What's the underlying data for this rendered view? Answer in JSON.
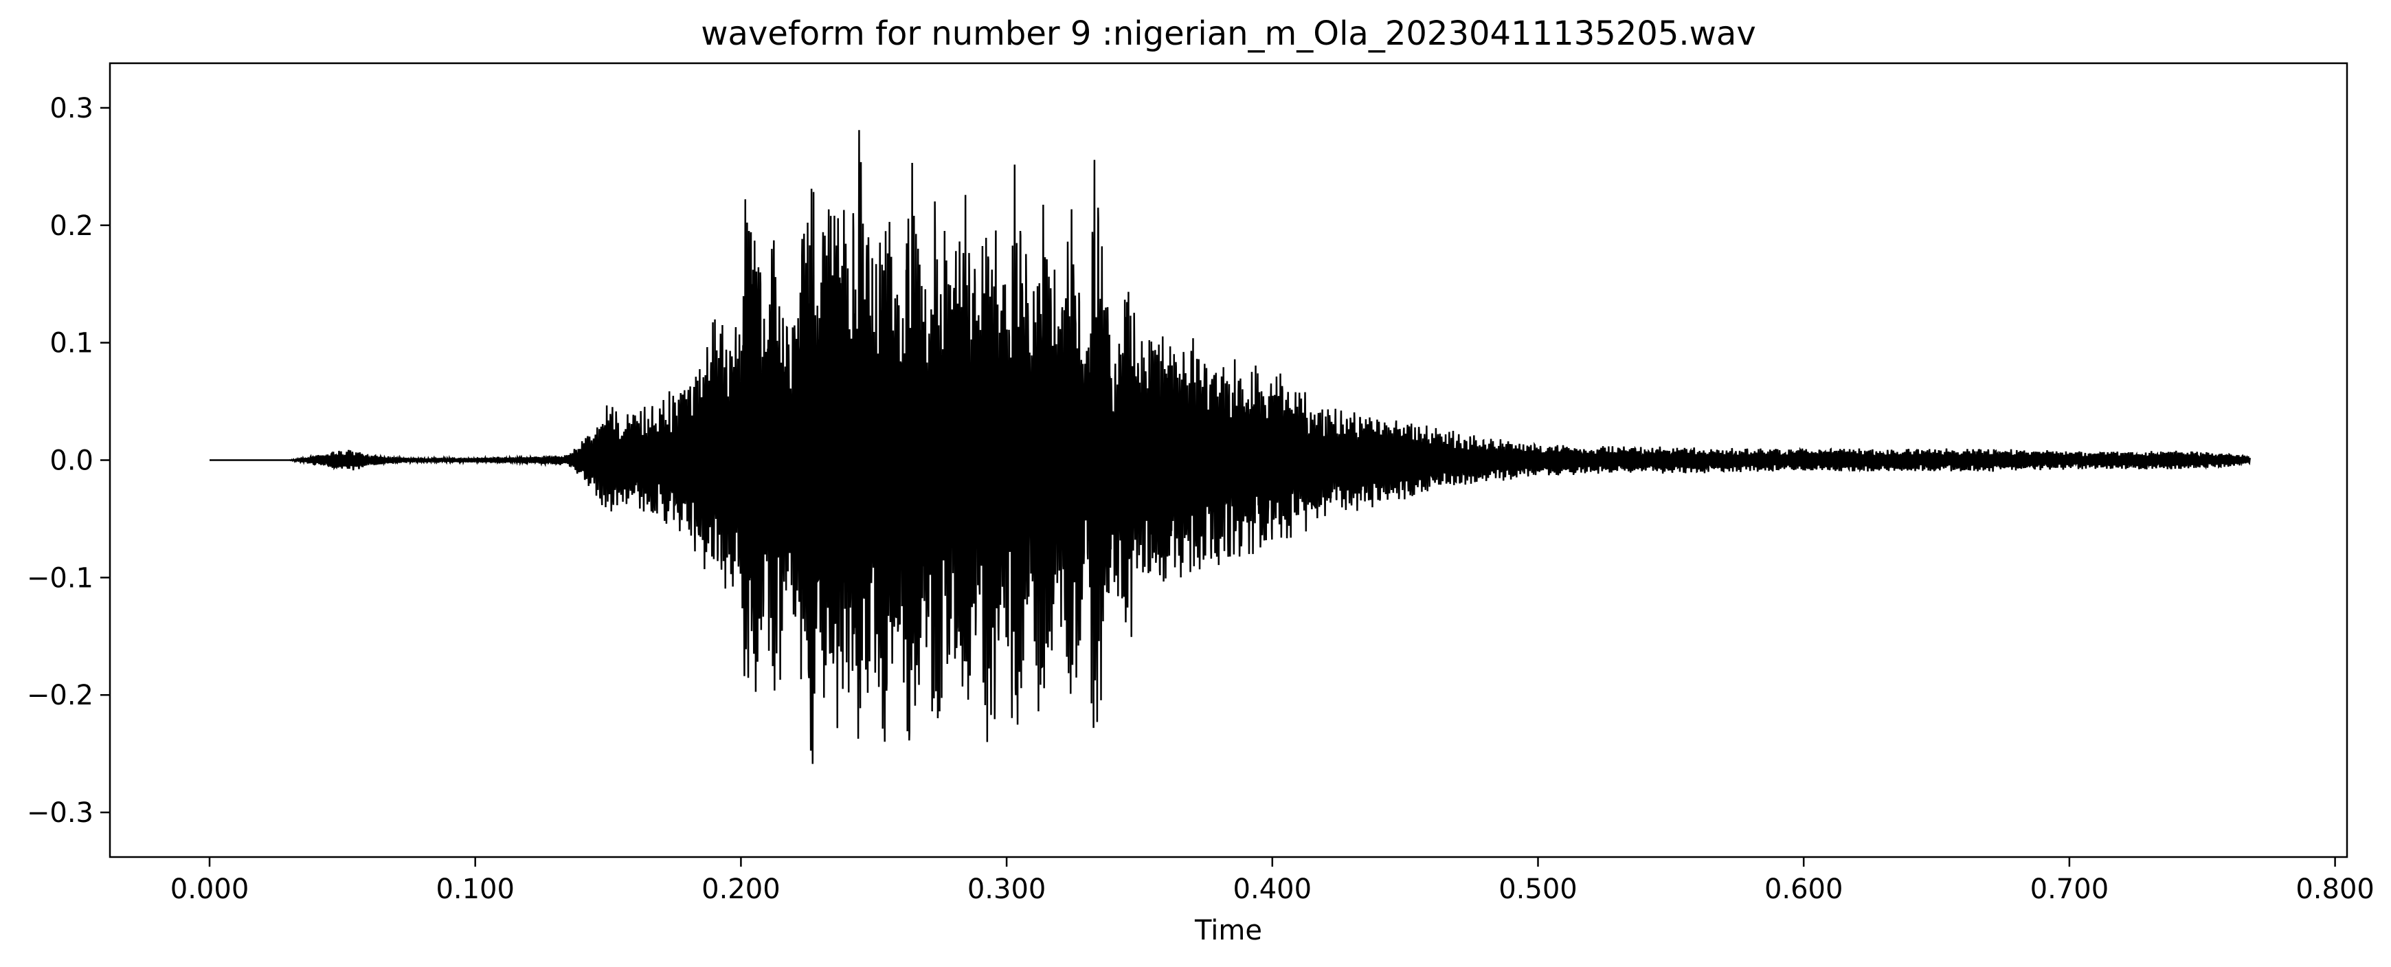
{
  "chart_data": {
    "type": "line",
    "title": "waveform for number 9 :nigerian_m_Ola_20230411135205.wav",
    "xlabel": "Time",
    "ylabel": "",
    "xlim": [
      -0.0375,
      0.8045
    ],
    "ylim": [
      -0.338,
      0.338
    ],
    "grid": false,
    "x_ticks": [
      0.0,
      0.1,
      0.2,
      0.3,
      0.4,
      0.5,
      0.6,
      0.7,
      0.8
    ],
    "x_tick_labels": [
      "0.000",
      "0.100",
      "0.200",
      "0.300",
      "0.400",
      "0.500",
      "0.600",
      "0.700",
      "0.800"
    ],
    "y_ticks": [
      -0.3,
      -0.2,
      -0.1,
      0.0,
      0.1,
      0.2,
      0.3
    ],
    "y_tick_labels": [
      "−0.3",
      "−0.2",
      "−0.1",
      "0.0",
      "0.1",
      "0.2",
      "0.3"
    ],
    "line_color": "#000000",
    "series": [
      {
        "x": [
          0.0,
          0.03,
          0.053,
          0.06,
          0.075,
          0.1,
          0.12,
          0.135,
          0.145,
          0.15,
          0.155,
          0.16,
          0.165,
          0.17,
          0.175,
          0.18,
          0.185,
          0.19,
          0.195,
          0.2,
          0.202,
          0.21,
          0.212,
          0.218,
          0.22,
          0.227,
          0.228,
          0.235,
          0.24,
          0.245,
          0.25,
          0.253,
          0.26,
          0.263,
          0.27,
          0.273,
          0.28,
          0.283,
          0.29,
          0.293,
          0.3,
          0.303,
          0.31,
          0.313,
          0.32,
          0.323,
          0.33,
          0.333,
          0.34,
          0.345,
          0.35,
          0.36,
          0.37,
          0.38,
          0.39,
          0.4,
          0.41,
          0.42,
          0.43,
          0.44,
          0.45,
          0.46,
          0.47,
          0.48,
          0.5,
          0.52,
          0.55,
          0.58,
          0.6,
          0.62,
          0.65,
          0.68,
          0.7,
          0.72,
          0.74,
          0.76,
          0.768
        ],
        "y": [
          0.0,
          0.0,
          0.01,
          0.005,
          0.002,
          0.002,
          0.003,
          0.005,
          0.03,
          0.053,
          0.04,
          0.045,
          0.05,
          0.06,
          0.065,
          0.065,
          0.1,
          0.125,
          0.11,
          0.12,
          0.26,
          0.15,
          0.25,
          0.145,
          0.15,
          0.305,
          0.16,
          0.27,
          0.2,
          0.3,
          0.17,
          0.275,
          0.165,
          0.29,
          0.17,
          0.275,
          0.16,
          0.275,
          0.15,
          0.265,
          0.16,
          0.265,
          0.14,
          0.26,
          0.13,
          0.255,
          0.12,
          0.265,
          0.1,
          0.18,
          0.12,
          0.11,
          0.105,
          0.09,
          0.085,
          0.08,
          0.065,
          0.05,
          0.045,
          0.04,
          0.035,
          0.03,
          0.025,
          0.02,
          0.015,
          0.012,
          0.012,
          0.01,
          0.01,
          0.01,
          0.01,
          0.01,
          0.008,
          0.008,
          0.008,
          0.006,
          0.004
        ]
      }
    ]
  }
}
